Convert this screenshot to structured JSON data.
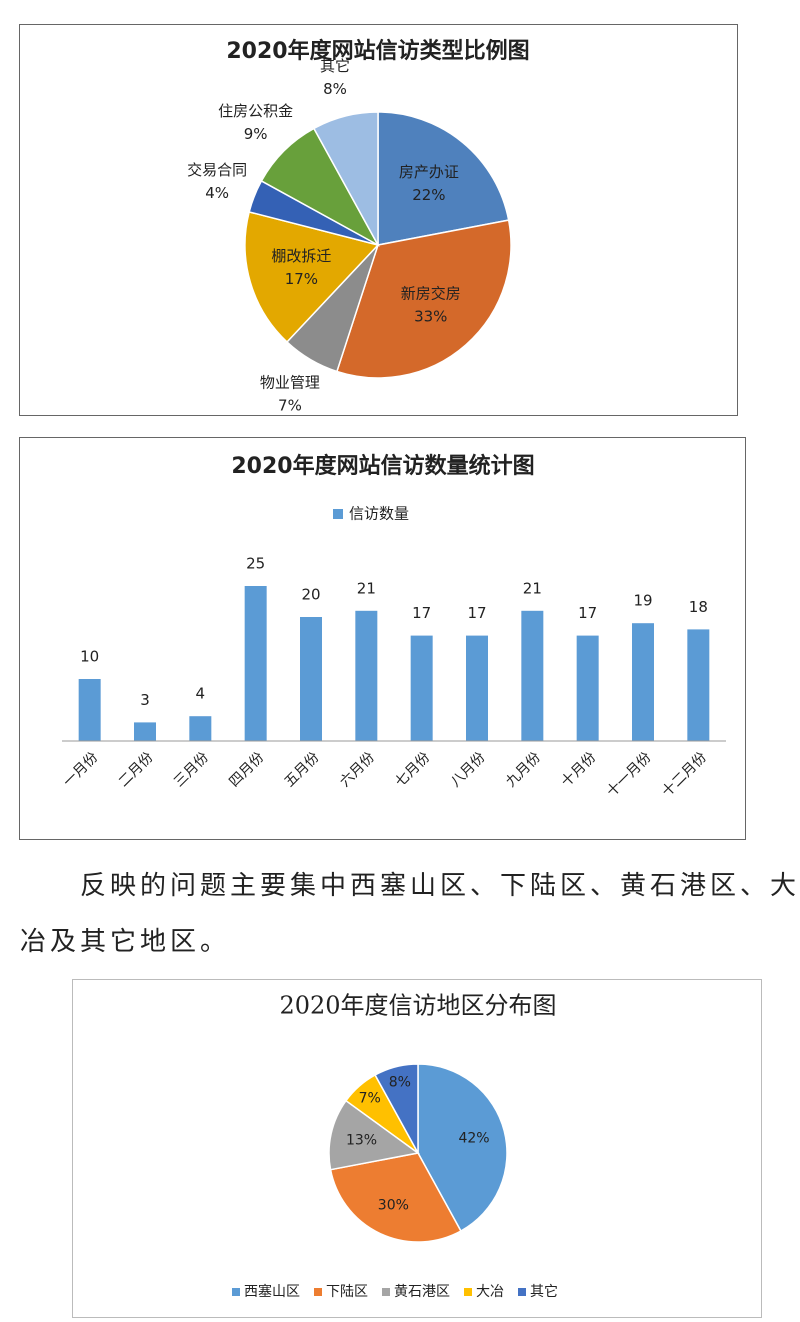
{
  "chart_data": [
    {
      "type": "pie",
      "title": "2020年度网站信访类型比例图",
      "categories": [
        "房产办证",
        "新房交房",
        "物业管理",
        "棚改拆迁",
        "交易合同",
        "住房公积金",
        "其它"
      ],
      "values": [
        22,
        33,
        7,
        17,
        4,
        9,
        8
      ],
      "value_labels": [
        "22%",
        "33%",
        "7%",
        "17%",
        "4%",
        "9%",
        "8%"
      ],
      "colors": [
        "#4f81bd",
        "#d4692a",
        "#8c8c8c",
        "#e3a800",
        "#3461b5",
        "#68a03b",
        "#9dbde3"
      ]
    },
    {
      "type": "bar",
      "title": "2020年度网站信访数量统计图",
      "categories": [
        "一月份",
        "二月份",
        "三月份",
        "四月份",
        "五月份",
        "六月份",
        "七月份",
        "八月份",
        "九月份",
        "十月份",
        "十一月份",
        "十二月份"
      ],
      "series": [
        {
          "name": "信访数量",
          "color": "#5b9bd5",
          "values": [
            10,
            3,
            4,
            25,
            20,
            21,
            17,
            17,
            21,
            17,
            19,
            18
          ]
        }
      ],
      "ylim": [
        0,
        25
      ],
      "legend": "top"
    },
    {
      "type": "pie",
      "title": "2020年度信访地区分布图",
      "categories": [
        "西塞山区",
        "下陆区",
        "黄石港区",
        "大冶",
        "其它"
      ],
      "values": [
        42,
        30,
        13,
        7,
        8
      ],
      "value_labels": [
        "42%",
        "30%",
        "13%",
        "7%",
        "8%"
      ],
      "colors": [
        "#5b9bd5",
        "#ed7d31",
        "#a5a5a5",
        "#ffc000",
        "#4472c4"
      ],
      "legend": "bottom"
    }
  ],
  "paragraph": "反映的问题主要集中西塞山区、下陆区、黄石港区、大冶及其它地区。"
}
